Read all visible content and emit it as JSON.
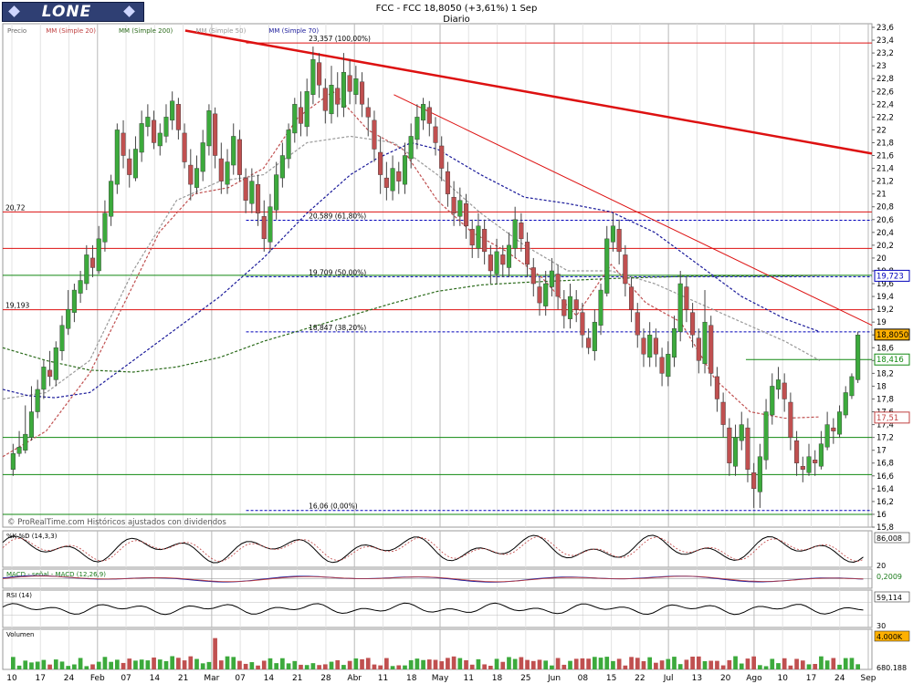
{
  "header": {
    "logo": "LONE",
    "title_line": "FCC - FCC    18,8050 (+3,61%)    1 Sep",
    "period": "Diario"
  },
  "watermark": "© ProRealTime.com  Históricos ajustados con dividendos",
  "legend": [
    {
      "label": "Precio",
      "color": "#666666"
    },
    {
      "label": "MM (Simple 20)",
      "color": "#c04040"
    },
    {
      "label": "MM (Simple 200)",
      "color": "#2a6a1a"
    },
    {
      "label": "MM (Simple 50)",
      "color": "#9a9a9a"
    },
    {
      "label": "MM (Simple 70)",
      "color": "#1a1a9a"
    }
  ],
  "colors": {
    "up": "#3caa3c",
    "down": "#c05050",
    "resistance": "#dd1111",
    "support": "#118811",
    "fib": "#0000bb"
  },
  "chart_data": {
    "type": "candlestick",
    "title": "FCC - FCC",
    "y_ticks": [
      "15,8",
      "16",
      "16,2",
      "16,4",
      "16,6",
      "16,8",
      "17",
      "17,2",
      "17,4",
      "17,6",
      "17,8",
      "18",
      "18,2",
      "18,4",
      "18,6",
      "18,8",
      "19",
      "19,2",
      "19,4",
      "19,6",
      "19,8",
      "20",
      "20,2",
      "20,4",
      "20,6",
      "20,8",
      "21",
      "21,2",
      "21,4",
      "21,6",
      "21,8",
      "22",
      "22,2",
      "22,4",
      "22,6",
      "22,8",
      "23",
      "23,2",
      "23,4",
      "23,6"
    ],
    "ylim": [
      15.8,
      23.6
    ],
    "x_ticks": [
      "10",
      "17",
      "24",
      "Feb",
      "07",
      "14",
      "21",
      "Mar",
      "07",
      "14",
      "21",
      "28",
      "Abr",
      "11",
      "18",
      "May",
      "11",
      "18",
      "25",
      "Jun",
      "08",
      "15",
      "22",
      "Jul",
      "13",
      "20",
      "Ago",
      "10",
      "17",
      "24",
      "Sep"
    ],
    "price_tags": [
      {
        "label": "19,723",
        "value": 19.723,
        "style": "fib"
      },
      {
        "label": "18,8050",
        "value": 18.805,
        "style": "current"
      },
      {
        "label": "18,416",
        "value": 18.416,
        "style": "support"
      },
      {
        "label": "17,51",
        "value": 17.51,
        "style": "ma"
      }
    ],
    "horizontal_levels": [
      {
        "value": 23.357,
        "label": "23,357 (100,00%)",
        "style": "resistance"
      },
      {
        "value": 20.72,
        "label": "20,72",
        "style": "resistance"
      },
      {
        "value": 20.589,
        "label": "20,589 (61,80%)",
        "style": "fib"
      },
      {
        "value": 20.15,
        "label": "",
        "style": "resistance"
      },
      {
        "value": 19.73,
        "label": "",
        "style": "support"
      },
      {
        "value": 19.709,
        "label": "19,709 (50,00%)",
        "style": "fib"
      },
      {
        "value": 19.193,
        "label": "19,193",
        "style": "resistance"
      },
      {
        "value": 18.847,
        "label": "18,847 (38,20%)",
        "style": "fib"
      },
      {
        "value": 18.416,
        "label": "",
        "style": "support"
      },
      {
        "value": 17.2,
        "label": "",
        "style": "support"
      },
      {
        "value": 16.62,
        "label": "",
        "style": "support"
      },
      {
        "value": 16.06,
        "label": "16,06 (0,00%)",
        "style": "fib"
      },
      {
        "value": 16.0,
        "label": "",
        "style": "support"
      }
    ],
    "trendlines": [
      {
        "from": {
          "x": 0.21,
          "y": 23.55
        },
        "to": {
          "x": 1.0,
          "y": 21.63
        },
        "width": 2.5
      },
      {
        "from": {
          "x": 0.45,
          "y": 22.55
        },
        "to": {
          "x": 1.0,
          "y": 18.95
        },
        "width": 1
      }
    ],
    "series": [
      {
        "name": "MM (Simple 20)",
        "x": [
          0,
          0.05,
          0.1,
          0.14,
          0.18,
          0.22,
          0.26,
          0.3,
          0.34,
          0.38,
          0.42,
          0.46,
          0.5,
          0.54,
          0.58,
          0.62,
          0.66,
          0.7,
          0.74,
          0.78,
          0.82,
          0.86,
          0.9,
          0.94
        ],
        "values": [
          16.9,
          17.3,
          18.2,
          19.3,
          20.4,
          21.0,
          21.1,
          21.4,
          22.2,
          22.6,
          22.0,
          21.7,
          20.9,
          20.4,
          20.1,
          19.7,
          19.1,
          19.9,
          19.3,
          19.0,
          18.1,
          17.6,
          17.5,
          17.52
        ]
      },
      {
        "name": "MM (Simple 50)",
        "x": [
          0,
          0.05,
          0.1,
          0.15,
          0.2,
          0.25,
          0.3,
          0.35,
          0.4,
          0.45,
          0.5,
          0.55,
          0.6,
          0.65,
          0.7,
          0.75,
          0.8,
          0.85,
          0.9,
          0.94
        ],
        "values": [
          17.8,
          17.9,
          18.4,
          19.8,
          20.9,
          21.2,
          21.3,
          21.8,
          21.9,
          21.8,
          21.3,
          20.7,
          20.2,
          19.8,
          19.8,
          19.6,
          19.3,
          19.0,
          18.7,
          18.4
        ]
      },
      {
        "name": "MM (Simple 70)",
        "x": [
          0,
          0.03,
          0.06,
          0.1,
          0.15,
          0.2,
          0.25,
          0.3,
          0.35,
          0.4,
          0.43,
          0.47,
          0.5,
          0.55,
          0.6,
          0.65,
          0.7,
          0.75,
          0.8,
          0.85,
          0.9,
          0.94
        ],
        "values": [
          17.95,
          17.85,
          17.82,
          17.9,
          18.4,
          18.9,
          19.4,
          20.0,
          20.7,
          21.3,
          21.55,
          21.8,
          21.7,
          21.3,
          20.95,
          20.85,
          20.72,
          20.4,
          19.9,
          19.4,
          19.05,
          18.85
        ]
      },
      {
        "name": "MM (Simple 200)",
        "x": [
          0,
          0.05,
          0.1,
          0.15,
          0.2,
          0.25,
          0.3,
          0.35,
          0.4,
          0.45,
          0.5,
          0.55,
          0.6,
          0.65,
          0.7,
          0.75,
          0.8,
          0.85,
          0.9,
          0.94
        ],
        "values": [
          18.6,
          18.4,
          18.25,
          18.22,
          18.3,
          18.45,
          18.7,
          18.9,
          19.1,
          19.3,
          19.48,
          19.58,
          19.62,
          19.65,
          19.68,
          19.7,
          19.72,
          19.72,
          19.72,
          19.73
        ]
      }
    ],
    "candles": [
      [
        16.7,
        16.95,
        17.1,
        16.6
      ],
      [
        16.95,
        17.05,
        17.3,
        16.9
      ],
      [
        17.0,
        17.25,
        17.7,
        16.95
      ],
      [
        17.2,
        17.6,
        18.0,
        17.15
      ],
      [
        17.6,
        17.95,
        18.1,
        17.5
      ],
      [
        17.95,
        18.3,
        18.4,
        17.8
      ],
      [
        18.25,
        18.15,
        18.55,
        18.0
      ],
      [
        18.1,
        18.6,
        18.7,
        18.0
      ],
      [
        18.55,
        18.95,
        19.1,
        18.4
      ],
      [
        18.9,
        19.2,
        19.5,
        18.8
      ],
      [
        19.15,
        19.5,
        19.6,
        19.0
      ],
      [
        19.45,
        19.65,
        19.8,
        19.3
      ],
      [
        19.6,
        20.05,
        20.2,
        19.5
      ],
      [
        20.0,
        19.85,
        20.2,
        19.7
      ],
      [
        19.8,
        20.3,
        20.5,
        19.75
      ],
      [
        20.25,
        20.7,
        20.9,
        20.1
      ],
      [
        20.65,
        21.2,
        21.3,
        20.5
      ],
      [
        21.15,
        22.0,
        22.1,
        21.0
      ],
      [
        21.95,
        21.6,
        22.15,
        21.4
      ],
      [
        21.55,
        21.3,
        21.7,
        21.1
      ],
      [
        21.25,
        21.7,
        21.9,
        21.2
      ],
      [
        21.65,
        22.1,
        22.3,
        21.5
      ],
      [
        22.05,
        22.2,
        22.4,
        21.9
      ],
      [
        22.15,
        21.8,
        22.3,
        21.7
      ],
      [
        21.75,
        21.95,
        22.1,
        21.6
      ],
      [
        21.9,
        22.2,
        22.4,
        21.8
      ],
      [
        22.15,
        22.45,
        22.6,
        22.0
      ],
      [
        22.4,
        22.0,
        22.5,
        21.85
      ],
      [
        21.95,
        21.5,
        22.1,
        21.4
      ],
      [
        21.45,
        21.15,
        21.7,
        20.9
      ],
      [
        21.1,
        21.4,
        21.6,
        21.0
      ],
      [
        21.35,
        21.8,
        22.0,
        21.2
      ],
      [
        21.75,
        22.3,
        22.4,
        21.6
      ],
      [
        22.25,
        21.6,
        22.35,
        21.4
      ],
      [
        21.55,
        21.2,
        21.8,
        21.0
      ],
      [
        21.15,
        21.5,
        21.7,
        21.0
      ],
      [
        21.45,
        21.9,
        22.1,
        21.3
      ],
      [
        21.85,
        21.3,
        22.0,
        21.2
      ],
      [
        21.25,
        20.9,
        21.4,
        20.7
      ],
      [
        20.85,
        21.2,
        21.4,
        20.7
      ],
      [
        21.15,
        20.7,
        21.3,
        20.5
      ],
      [
        20.65,
        20.3,
        20.9,
        20.1
      ],
      [
        20.25,
        20.8,
        21.0,
        20.1
      ],
      [
        20.75,
        21.3,
        21.5,
        20.6
      ],
      [
        21.25,
        21.6,
        21.8,
        21.1
      ],
      [
        21.55,
        22.0,
        22.1,
        21.4
      ],
      [
        21.95,
        22.4,
        22.5,
        21.8
      ],
      [
        22.35,
        22.1,
        22.6,
        21.9
      ],
      [
        22.05,
        22.6,
        22.8,
        21.9
      ],
      [
        22.55,
        23.1,
        23.3,
        22.4
      ],
      [
        23.05,
        22.7,
        23.2,
        22.5
      ],
      [
        22.65,
        22.3,
        22.8,
        22.1
      ],
      [
        22.25,
        22.7,
        23.0,
        22.1
      ],
      [
        22.65,
        22.4,
        22.9,
        22.2
      ],
      [
        22.35,
        22.9,
        23.2,
        22.2
      ],
      [
        22.85,
        22.6,
        23.1,
        22.4
      ],
      [
        22.55,
        22.8,
        23.0,
        22.4
      ],
      [
        22.75,
        22.4,
        22.9,
        22.2
      ],
      [
        22.35,
        22.2,
        22.5,
        21.9
      ],
      [
        22.15,
        21.7,
        22.3,
        21.5
      ],
      [
        21.65,
        21.3,
        21.9,
        21.0
      ],
      [
        21.25,
        21.1,
        21.5,
        20.9
      ],
      [
        21.05,
        21.4,
        21.6,
        20.9
      ],
      [
        21.35,
        21.2,
        21.5,
        21.0
      ],
      [
        21.15,
        21.6,
        21.8,
        21.0
      ],
      [
        21.55,
        21.9,
        22.1,
        21.4
      ],
      [
        21.85,
        22.2,
        22.4,
        21.7
      ],
      [
        22.15,
        22.4,
        22.5,
        22.0
      ],
      [
        22.35,
        22.1,
        22.45,
        21.9
      ],
      [
        22.05,
        21.8,
        22.2,
        21.6
      ],
      [
        21.75,
        21.4,
        21.9,
        21.2
      ],
      [
        21.35,
        21.0,
        21.5,
        20.8
      ],
      [
        20.95,
        20.7,
        21.2,
        20.5
      ],
      [
        20.65,
        20.9,
        21.1,
        20.5
      ],
      [
        20.85,
        20.5,
        21.0,
        20.3
      ],
      [
        20.45,
        20.2,
        20.6,
        20.0
      ],
      [
        20.15,
        20.5,
        20.7,
        20.0
      ],
      [
        20.45,
        20.1,
        20.6,
        19.9
      ],
      [
        20.05,
        19.8,
        20.2,
        19.6
      ],
      [
        19.75,
        20.1,
        20.3,
        19.6
      ],
      [
        20.05,
        19.9,
        20.2,
        19.7
      ],
      [
        19.85,
        20.2,
        20.4,
        19.7
      ],
      [
        20.15,
        20.6,
        20.8,
        20.0
      ],
      [
        20.55,
        20.3,
        20.7,
        20.1
      ],
      [
        20.25,
        19.9,
        20.4,
        19.7
      ],
      [
        19.85,
        19.6,
        20.0,
        19.4
      ],
      [
        19.55,
        19.3,
        19.7,
        19.1
      ],
      [
        19.25,
        19.6,
        19.8,
        19.1
      ],
      [
        19.55,
        19.8,
        20.0,
        19.4
      ],
      [
        19.75,
        19.4,
        19.9,
        19.2
      ],
      [
        19.35,
        19.1,
        19.5,
        18.9
      ],
      [
        19.05,
        19.4,
        19.6,
        18.9
      ],
      [
        19.35,
        19.2,
        19.5,
        19.0
      ],
      [
        19.15,
        18.8,
        19.3,
        18.6
      ],
      [
        18.75,
        18.6,
        18.9,
        18.5
      ],
      [
        18.55,
        19.0,
        19.2,
        18.4
      ],
      [
        18.95,
        19.5,
        19.6,
        18.8
      ],
      [
        19.45,
        20.3,
        20.5,
        19.4
      ],
      [
        20.25,
        20.5,
        20.7,
        20.1
      ],
      [
        20.45,
        20.1,
        20.6,
        19.9
      ],
      [
        20.05,
        19.6,
        20.2,
        19.4
      ],
      [
        19.55,
        19.2,
        19.7,
        19.0
      ],
      [
        19.15,
        18.8,
        19.3,
        18.6
      ],
      [
        18.75,
        18.5,
        18.9,
        18.3
      ],
      [
        18.45,
        18.8,
        19.0,
        18.3
      ],
      [
        18.75,
        18.5,
        18.9,
        18.3
      ],
      [
        18.45,
        18.2,
        18.6,
        18.0
      ],
      [
        18.15,
        18.5,
        18.7,
        18.0
      ],
      [
        18.45,
        18.9,
        19.1,
        18.3
      ],
      [
        18.85,
        19.6,
        19.8,
        18.7
      ],
      [
        19.55,
        19.2,
        19.7,
        19.0
      ],
      [
        19.15,
        18.8,
        19.3,
        18.6
      ],
      [
        18.75,
        18.4,
        18.9,
        18.2
      ],
      [
        18.35,
        19.0,
        19.5,
        18.2
      ],
      [
        18.95,
        18.2,
        19.1,
        18.0
      ],
      [
        18.15,
        17.8,
        18.3,
        17.6
      ],
      [
        17.75,
        17.4,
        17.9,
        17.2
      ],
      [
        17.35,
        16.8,
        17.5,
        16.6
      ],
      [
        16.75,
        17.2,
        17.4,
        16.6
      ],
      [
        17.15,
        17.4,
        17.6,
        17.0
      ],
      [
        17.35,
        16.7,
        17.5,
        16.5
      ],
      [
        16.65,
        16.4,
        16.8,
        16.1
      ],
      [
        16.35,
        16.9,
        17.1,
        16.1
      ],
      [
        16.85,
        17.6,
        17.8,
        16.7
      ],
      [
        17.55,
        18.0,
        18.2,
        17.4
      ],
      [
        17.95,
        18.1,
        18.3,
        17.8
      ],
      [
        18.05,
        17.8,
        18.2,
        17.6
      ],
      [
        17.75,
        17.2,
        17.9,
        17.0
      ],
      [
        17.15,
        16.8,
        17.3,
        16.6
      ],
      [
        16.75,
        16.7,
        16.9,
        16.5
      ],
      [
        16.65,
        16.9,
        17.1,
        16.6
      ],
      [
        16.85,
        16.8,
        17.0,
        16.6
      ],
      [
        16.75,
        17.1,
        17.3,
        16.7
      ],
      [
        17.05,
        17.4,
        17.6,
        17.0
      ],
      [
        17.35,
        17.3,
        17.5,
        17.1
      ],
      [
        17.25,
        17.6,
        17.7,
        17.2
      ],
      [
        17.55,
        17.9,
        18.0,
        17.5
      ],
      [
        17.85,
        18.15,
        18.2,
        17.8
      ],
      [
        18.1,
        18.8,
        18.85,
        18.05
      ]
    ],
    "indicators": [
      {
        "name": "%K %D (14,3,3)",
        "ticks": [
          "86,008",
          "20"
        ],
        "range": [
          0,
          100
        ],
        "levels": [
          20,
          80
        ]
      },
      {
        "name": "MACD - señal - MACD (12,26,9)",
        "ticks": [
          "0,2009"
        ],
        "range": [
          -1,
          1
        ]
      },
      {
        "name": "RSI (14)",
        "ticks": [
          "59,114",
          "30"
        ],
        "range": [
          0,
          100
        ],
        "levels": [
          30,
          70
        ]
      },
      {
        "name": "Volumen",
        "ticks": [
          "4.000K",
          "680.188"
        ],
        "range": [
          0,
          4000000
        ]
      }
    ]
  }
}
